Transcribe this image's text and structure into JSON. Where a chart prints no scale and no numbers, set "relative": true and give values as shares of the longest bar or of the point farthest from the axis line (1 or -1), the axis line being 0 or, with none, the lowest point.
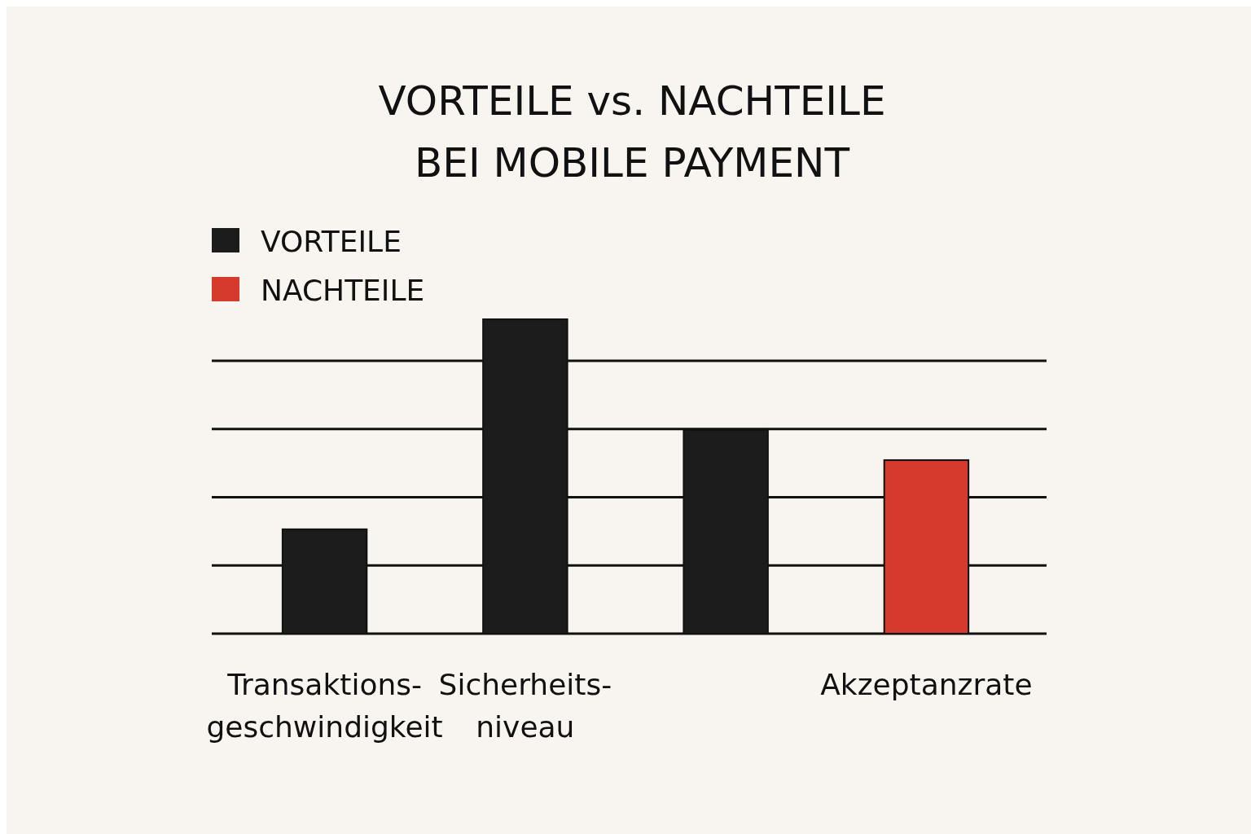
{
  "chart_data": {
    "type": "bar",
    "title": "VORTEILE vs. NACHTEILE\nBEI MOBILE PAYMENT",
    "categories": [
      "Transaktions-\ngeschwindigkeit",
      "Sicherheits-\nniveau",
      null,
      "Akzeptanzrate"
    ],
    "relative": true,
    "grid": "y",
    "legend": "top left",
    "series": [
      {
        "name": "VORTEILE",
        "color": "#1c1c1c",
        "values": [
          0.332,
          1,
          0.648,
          null
        ]
      },
      {
        "name": "NACHTEILE",
        "color": "#d63a2c",
        "values": [
          null,
          null,
          null,
          0.552
        ]
      }
    ]
  }
}
